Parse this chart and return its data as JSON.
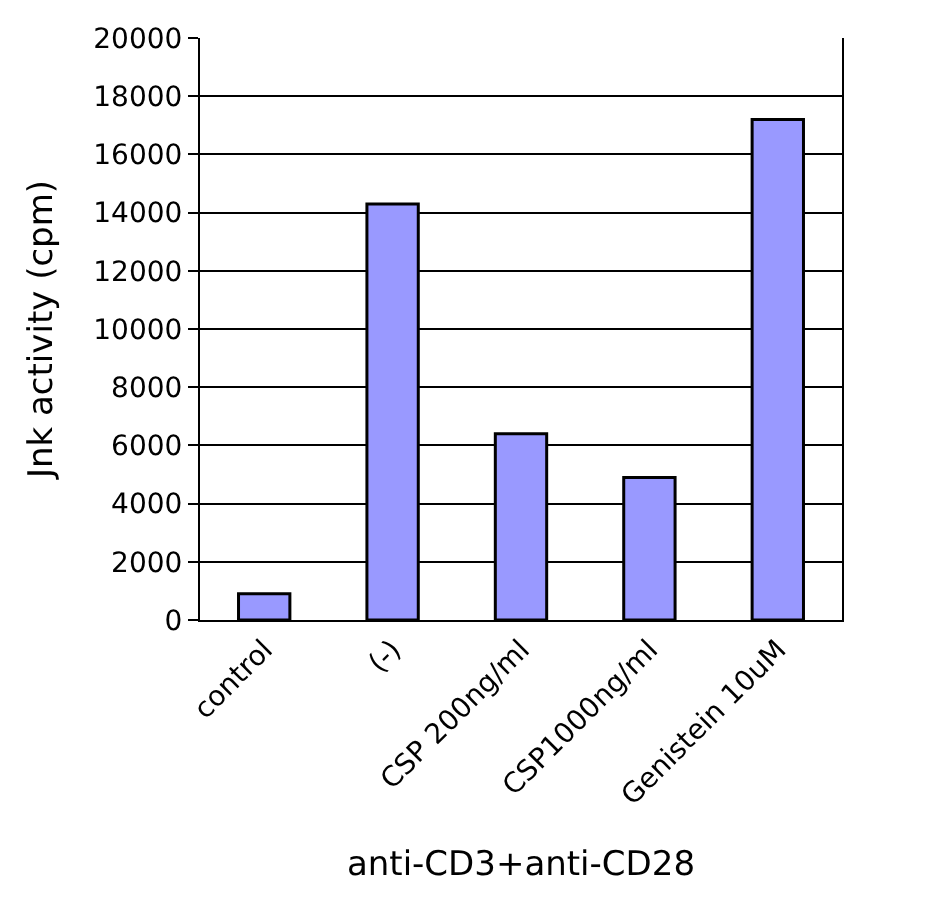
{
  "chart_data": {
    "type": "bar",
    "xlabel": "anti-CD3+anti-CD28",
    "ylabel": "Jnk activity (cpm)",
    "categories": [
      "control",
      "(-)",
      "CSP 200ng/ml",
      "CSP1000ng/ml",
      "Genistein 10uM"
    ],
    "values": [
      900,
      14300,
      6400,
      4900,
      17200
    ],
    "color": "#9999ff",
    "ylim": [
      0,
      20000
    ],
    "yticks": [
      0,
      2000,
      4000,
      6000,
      8000,
      10000,
      12000,
      14000,
      16000,
      18000,
      20000
    ],
    "grid": "y"
  }
}
